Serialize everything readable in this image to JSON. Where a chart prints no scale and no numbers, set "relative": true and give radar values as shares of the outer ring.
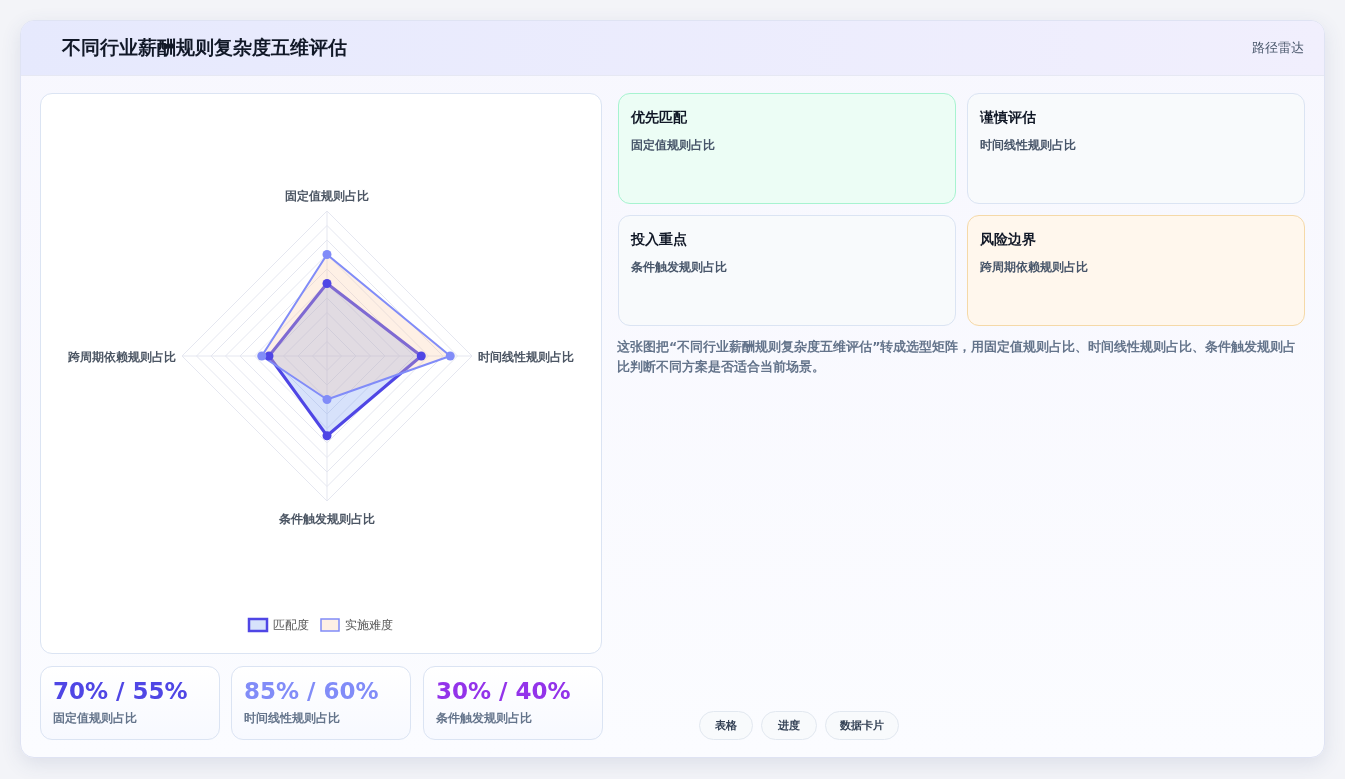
{
  "chart_data": [
    {
      "type": "radar",
      "title": "不同行业薪酬规则复杂度五维评估",
      "categories": [
        "固定值规则占比",
        "时间线性规则占比",
        "条件触发规则占比",
        "跨周期依赖规则占比"
      ],
      "relative": true,
      "grid": true,
      "marker": "circle",
      "legend": "bottom",
      "series": [
        {
          "name": "匹配度",
          "color": "#4f46e5",
          "values": [
            0.5,
            0.65,
            0.55,
            0.4
          ]
        },
        {
          "name": "实施难度",
          "color": "#818cf8",
          "values": [
            0.7,
            0.85,
            0.3,
            0.45
          ]
        }
      ]
    },
    {
      "type": "other",
      "annotations": [
        "优先匹配",
        "固定值规则占比",
        "谨慎评估",
        "时间线性规则占比",
        "投入重点",
        "条件触发规则占比",
        "风险边界",
        "跨周期依赖规则占比",
        "这张图把“不同行业薪酬规则复杂度五维评估”转成选型矩阵，用固定值规则占比、时间线性规则占比、条件触发规则占比判断不同方案是否适合当前场景。",
        "70% / 55%",
        "固定值规则占比",
        "85% / 60%",
        "时间线性规则占比",
        "30% / 40%",
        "条件触发规则占比",
        "表格",
        "进度",
        "数据卡片",
        "路径雷达"
      ]
    }
  ]
}
